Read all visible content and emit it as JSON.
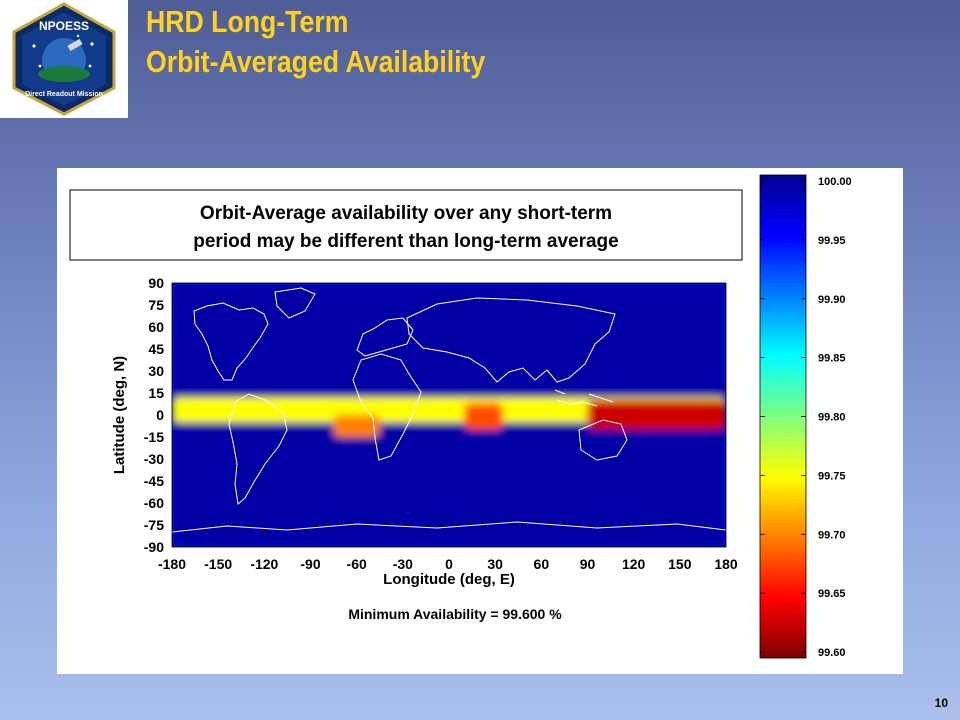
{
  "slide": {
    "title_line1": "HRD Long-Term",
    "title_line2": "Orbit-Averaged Availability",
    "page_number": "10"
  },
  "logo": {
    "text": "NPOESS",
    "mission": "Direct Readout Mission"
  },
  "callout": {
    "line1": "Orbit-Average availability over any short-term",
    "line2": "period may be different than long-term average"
  },
  "chart_data": {
    "type": "heatmap",
    "xlabel": "Longitude (deg, E)",
    "ylabel": "Latitude (deg, N)",
    "xlim": [
      -180,
      180
    ],
    "ylim": [
      -90,
      90
    ],
    "xticks": [
      -180,
      -150,
      -120,
      -90,
      -60,
      -30,
      0,
      30,
      60,
      90,
      120,
      150,
      180
    ],
    "yticks": [
      90,
      75,
      60,
      45,
      30,
      15,
      0,
      -15,
      -30,
      -45,
      -60,
      -75,
      -90
    ],
    "colorbar": {
      "ticks": [
        "100.00",
        "99.95",
        "99.90",
        "99.85",
        "99.80",
        "99.75",
        "99.70",
        "99.65",
        "99.60"
      ],
      "range": [
        99.6,
        100.0
      ],
      "colormap": "jet"
    },
    "annotation": "Minimum Availability = 99.600 %",
    "min_value": 99.6,
    "background_value": 99.99,
    "field_features": [
      {
        "feature": "equatorial band",
        "lon_range": [
          -180,
          180
        ],
        "lat_range": [
          -5,
          12
        ],
        "value": 99.75
      },
      {
        "feature": "maritime continent",
        "lon_range": [
          90,
          180
        ],
        "lat_range": [
          -10,
          10
        ],
        "value": 99.63
      },
      {
        "feature": "central Africa",
        "lon_range": [
          10,
          35
        ],
        "lat_range": [
          -10,
          8
        ],
        "value": 99.68
      },
      {
        "feature": "Amazon",
        "lon_range": [
          -75,
          -45
        ],
        "lat_range": [
          -15,
          0
        ],
        "value": 99.7
      }
    ]
  }
}
